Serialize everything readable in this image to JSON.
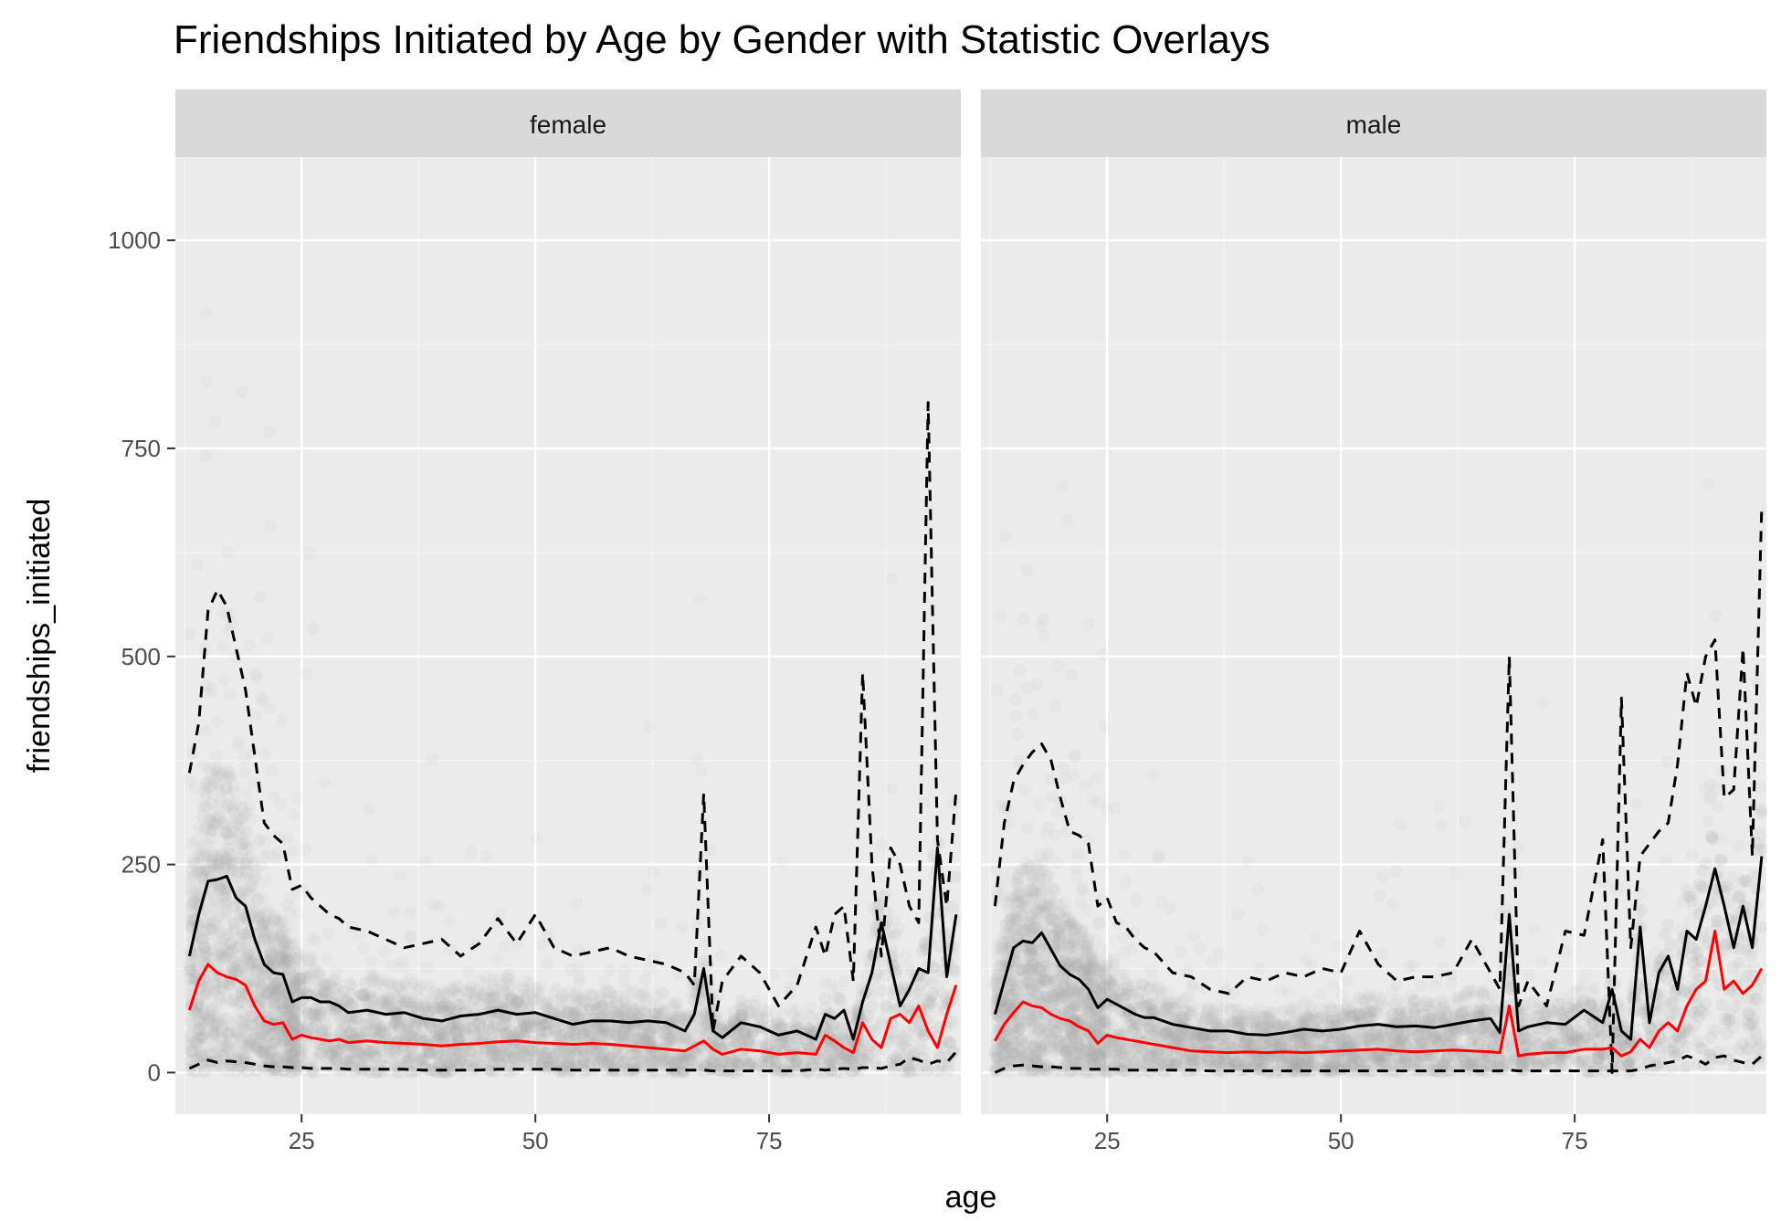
{
  "chart_data": {
    "type": "line",
    "title": "Friendships Initiated by Age by Gender with Statistic Overlays",
    "xlabel": "age",
    "ylabel": "friendships_initiated",
    "xlim": [
      11.5,
      95.5
    ],
    "ylim": [
      -50,
      1100
    ],
    "x_ticks": [
      25,
      50,
      75
    ],
    "y_ticks": [
      0,
      250,
      500,
      750,
      1000
    ],
    "grid": true,
    "colors": {
      "background": "#ebebeb",
      "strip": "#d9d9d9",
      "points": "#aaaaaa",
      "mean": "#000000",
      "median": "#ff0000",
      "quantile": "#000000"
    },
    "panels": [
      {
        "label": "female",
        "series": [
          {
            "style": "mean",
            "x": [
              13,
              14,
              15,
              16,
              17,
              18,
              19,
              20,
              21,
              22,
              23,
              24,
              25,
              26,
              27,
              28,
              29,
              30,
              32,
              34,
              36,
              38,
              40,
              42,
              44,
              46,
              48,
              50,
              52,
              54,
              56,
              58,
              60,
              62,
              64,
              66,
              67,
              68,
              69,
              70,
              72,
              74,
              76,
              78,
              80,
              81,
              82,
              83,
              84,
              85,
              86,
              87,
              88,
              89,
              90,
              91,
              92,
              93,
              94,
              95
            ],
            "y": [
              140,
              190,
              230,
              232,
              236,
              210,
              200,
              160,
              130,
              120,
              118,
              85,
              90,
              90,
              85,
              85,
              80,
              72,
              75,
              70,
              72,
              65,
              62,
              68,
              70,
              75,
              70,
              72,
              65,
              58,
              62,
              62,
              60,
              62,
              60,
              50,
              70,
              125,
              50,
              42,
              60,
              55,
              45,
              50,
              40,
              70,
              65,
              75,
              40,
              85,
              120,
              180,
              130,
              80,
              100,
              125,
              120,
              270,
              115,
              190
            ]
          },
          {
            "style": "median",
            "x": [
              13,
              14,
              15,
              16,
              17,
              18,
              19,
              20,
              21,
              22,
              23,
              24,
              25,
              26,
              27,
              28,
              29,
              30,
              32,
              34,
              36,
              38,
              40,
              42,
              44,
              46,
              48,
              50,
              52,
              54,
              56,
              58,
              60,
              62,
              64,
              66,
              67,
              68,
              69,
              70,
              72,
              74,
              76,
              78,
              80,
              81,
              82,
              83,
              84,
              85,
              86,
              87,
              88,
              89,
              90,
              91,
              92,
              93,
              94,
              95
            ],
            "y": [
              75,
              110,
              130,
              120,
              115,
              112,
              105,
              80,
              62,
              58,
              60,
              40,
              45,
              42,
              40,
              38,
              40,
              36,
              38,
              36,
              35,
              34,
              32,
              34,
              35,
              37,
              38,
              36,
              35,
              34,
              35,
              34,
              32,
              30,
              28,
              26,
              32,
              38,
              28,
              22,
              28,
              26,
              22,
              24,
              22,
              45,
              38,
              30,
              24,
              60,
              40,
              30,
              65,
              70,
              60,
              80,
              50,
              30,
              70,
              105
            ]
          },
          {
            "style": "upper_quantile",
            "x": [
              13,
              14,
              15,
              16,
              17,
              18,
              19,
              20,
              21,
              22,
              23,
              24,
              25,
              26,
              27,
              28,
              29,
              30,
              32,
              34,
              36,
              38,
              40,
              42,
              44,
              46,
              48,
              50,
              52,
              54,
              56,
              58,
              60,
              62,
              64,
              66,
              67,
              68,
              69,
              70,
              72,
              74,
              76,
              78,
              80,
              81,
              82,
              83,
              84,
              85,
              86,
              87,
              88,
              89,
              90,
              91,
              92,
              93,
              94,
              95
            ],
            "y": [
              360,
              420,
              555,
              580,
              560,
              510,
              460,
              380,
              300,
              285,
              275,
              220,
              225,
              210,
              200,
              190,
              185,
              175,
              170,
              160,
              150,
              155,
              160,
              140,
              155,
              185,
              155,
              190,
              150,
              140,
              145,
              150,
              140,
              135,
              130,
              120,
              105,
              335,
              50,
              110,
              140,
              120,
              80,
              105,
              175,
              140,
              190,
              200,
              110,
              480,
              250,
              140,
              270,
              250,
              200,
              180,
              805,
              280,
              200,
              340
            ]
          },
          {
            "style": "lower_quantile",
            "x": [
              13,
              14,
              15,
              16,
              17,
              18,
              19,
              20,
              21,
              22,
              23,
              24,
              25,
              26,
              27,
              28,
              29,
              30,
              32,
              34,
              36,
              38,
              40,
              42,
              44,
              46,
              48,
              50,
              52,
              54,
              56,
              58,
              60,
              62,
              64,
              66,
              67,
              68,
              69,
              70,
              72,
              74,
              76,
              78,
              80,
              81,
              82,
              83,
              84,
              85,
              86,
              87,
              88,
              89,
              90,
              91,
              92,
              93,
              94,
              95
            ],
            "y": [
              5,
              10,
              15,
              12,
              14,
              13,
              12,
              10,
              8,
              7,
              7,
              6,
              6,
              5,
              5,
              5,
              5,
              4,
              4,
              4,
              4,
              3,
              3,
              3,
              3,
              4,
              4,
              4,
              4,
              3,
              3,
              3,
              3,
              3,
              3,
              3,
              3,
              3,
              2,
              2,
              2,
              2,
              2,
              2,
              4,
              3,
              4,
              5,
              4,
              6,
              6,
              5,
              8,
              10,
              18,
              15,
              10,
              14,
              12,
              25
            ]
          }
        ]
      },
      {
        "label": "male",
        "series": [
          {
            "style": "mean",
            "x": [
              13,
              14,
              15,
              16,
              17,
              18,
              19,
              20,
              21,
              22,
              23,
              24,
              25,
              26,
              27,
              28,
              29,
              30,
              32,
              34,
              36,
              38,
              40,
              42,
              44,
              46,
              48,
              50,
              52,
              54,
              56,
              58,
              60,
              62,
              64,
              66,
              67,
              68,
              69,
              70,
              72,
              74,
              76,
              78,
              79,
              80,
              81,
              82,
              83,
              84,
              85,
              86,
              87,
              88,
              89,
              90,
              91,
              92,
              93,
              94,
              95
            ],
            "y": [
              70,
              110,
              150,
              158,
              156,
              168,
              148,
              128,
              118,
              112,
              100,
              78,
              88,
              82,
              76,
              70,
              66,
              66,
              58,
              54,
              50,
              50,
              46,
              45,
              48,
              52,
              50,
              52,
              56,
              58,
              55,
              56,
              54,
              58,
              62,
              65,
              48,
              190,
              50,
              55,
              60,
              58,
              75,
              60,
              100,
              50,
              40,
              175,
              60,
              120,
              140,
              100,
              170,
              160,
              200,
              245,
              200,
              150,
              200,
              150,
              260
            ]
          },
          {
            "style": "median",
            "x": [
              13,
              14,
              15,
              16,
              17,
              18,
              19,
              20,
              21,
              22,
              23,
              24,
              25,
              26,
              27,
              28,
              29,
              30,
              32,
              34,
              36,
              38,
              40,
              42,
              44,
              46,
              48,
              50,
              52,
              54,
              56,
              58,
              60,
              62,
              64,
              66,
              67,
              68,
              69,
              70,
              72,
              74,
              76,
              78,
              79,
              80,
              81,
              82,
              83,
              84,
              85,
              86,
              87,
              88,
              89,
              90,
              91,
              92,
              93,
              94,
              95
            ],
            "y": [
              38,
              58,
              72,
              85,
              80,
              78,
              70,
              65,
              62,
              55,
              50,
              35,
              45,
              42,
              40,
              38,
              36,
              34,
              30,
              26,
              25,
              24,
              25,
              24,
              25,
              24,
              25,
              26,
              27,
              28,
              26,
              25,
              26,
              27,
              26,
              25,
              24,
              80,
              20,
              22,
              24,
              24,
              28,
              28,
              30,
              20,
              25,
              40,
              30,
              50,
              60,
              50,
              80,
              100,
              110,
              170,
              100,
              110,
              95,
              105,
              125
            ]
          },
          {
            "style": "upper_quantile",
            "x": [
              13,
              14,
              15,
              16,
              17,
              18,
              19,
              20,
              21,
              22,
              23,
              24,
              25,
              26,
              27,
              28,
              29,
              30,
              32,
              34,
              36,
              38,
              40,
              42,
              44,
              46,
              48,
              50,
              52,
              54,
              56,
              58,
              60,
              62,
              64,
              66,
              67,
              68,
              69,
              70,
              72,
              74,
              76,
              78,
              79,
              80,
              81,
              82,
              83,
              84,
              85,
              86,
              87,
              88,
              89,
              90,
              91,
              92,
              93,
              94,
              95
            ],
            "y": [
              200,
              300,
              350,
              370,
              385,
              395,
              375,
              330,
              290,
              285,
              275,
              200,
              210,
              180,
              175,
              160,
              150,
              145,
              120,
              115,
              100,
              95,
              115,
              110,
              120,
              115,
              125,
              120,
              170,
              130,
              110,
              115,
              115,
              120,
              160,
              120,
              100,
              500,
              80,
              110,
              80,
              170,
              165,
              280,
              0,
              450,
              150,
              260,
              275,
              290,
              300,
              370,
              480,
              440,
              500,
              520,
              330,
              340,
              510,
              260,
              680
            ]
          },
          {
            "style": "lower_quantile",
            "x": [
              13,
              14,
              15,
              16,
              17,
              18,
              19,
              20,
              21,
              22,
              23,
              24,
              25,
              26,
              27,
              28,
              29,
              30,
              32,
              34,
              36,
              38,
              40,
              42,
              44,
              46,
              48,
              50,
              52,
              54,
              56,
              58,
              60,
              62,
              64,
              66,
              67,
              68,
              69,
              70,
              72,
              74,
              76,
              78,
              79,
              80,
              81,
              82,
              83,
              84,
              85,
              86,
              87,
              88,
              89,
              90,
              91,
              92,
              93,
              94,
              95
            ],
            "y": [
              0,
              5,
              8,
              9,
              8,
              7,
              7,
              6,
              5,
              5,
              4,
              4,
              4,
              4,
              3,
              3,
              3,
              3,
              3,
              3,
              2,
              2,
              2,
              2,
              2,
              2,
              2,
              2,
              2,
              2,
              2,
              2,
              2,
              2,
              2,
              2,
              2,
              3,
              2,
              2,
              2,
              2,
              2,
              2,
              2,
              2,
              2,
              4,
              8,
              10,
              12,
              14,
              20,
              16,
              10,
              18,
              20,
              15,
              12,
              10,
              20
            ]
          }
        ]
      }
    ]
  }
}
